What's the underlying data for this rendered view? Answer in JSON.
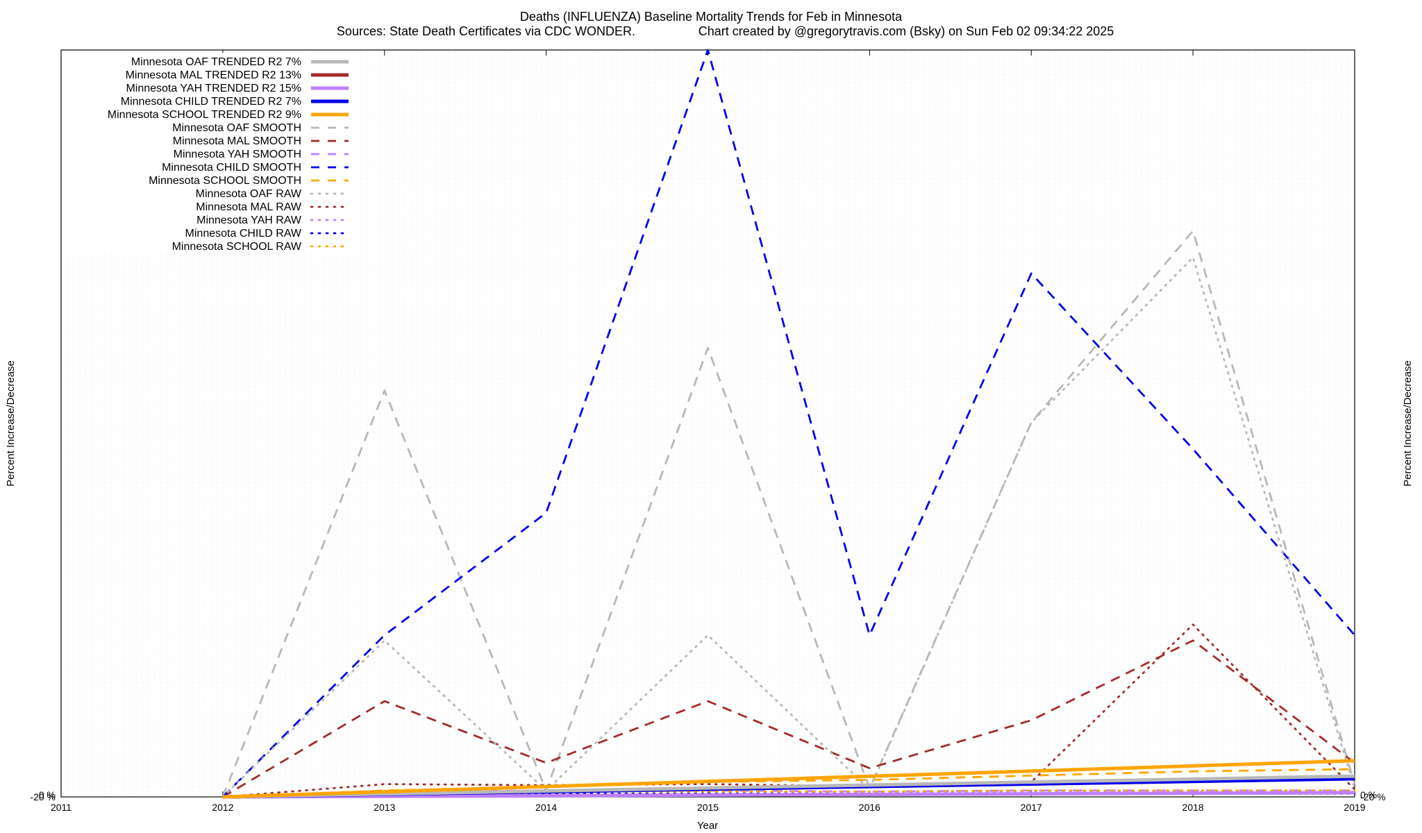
{
  "chart_data": {
    "type": "line",
    "title": "Deaths (INFLUENZA)  Baseline Mortality Trends for Feb in Minnesota",
    "subtitle_left": "Sources: State Death Certificates via CDC WONDER.",
    "subtitle_right": "Chart created by @gregorytravis.com (Bsky) on Sun Feb 02 09:34:22 2025",
    "xlabel": "Year",
    "ylabel": "Percent Increase/Decrease",
    "y2label": "Percent Increase/Decrease",
    "xlim": [
      2011,
      2019
    ],
    "ylim": [
      -20,
      7000
    ],
    "x_ticks": [
      2011,
      2012,
      2013,
      2014,
      2015,
      2016,
      2017,
      2018,
      2019
    ],
    "x_tick_labels": [
      "2011",
      "2012",
      "2013",
      "2014",
      "2015",
      "2016",
      "2017",
      "2018",
      "2019"
    ],
    "y_ticks": [
      -20,
      0
    ],
    "y_tick_labels": [
      "-20 %",
      "0 %"
    ],
    "grid": true,
    "legend_position": "top-left",
    "series": [
      {
        "name": "Minnesota OAF TRENDED R2   7%",
        "color": "#b8b8b8",
        "style": "solid",
        "x": [
          2012,
          2019
        ],
        "y": [
          -20,
          175
        ]
      },
      {
        "name": "Minnesota MAL TRENDED R2  13%",
        "color": "#a52a2a",
        "style": "solid",
        "x": [
          2012,
          2019
        ],
        "y": [
          -20,
          150
        ]
      },
      {
        "name": "Minnesota YAH TRENDED R2  15%",
        "color": "#bf7fff",
        "style": "solid",
        "x": [
          2012,
          2019
        ],
        "y": [
          -20,
          20
        ]
      },
      {
        "name": "Minnesota CHILD TRENDED R2   7%",
        "color": "#0000ee",
        "style": "solid",
        "x": [
          2012,
          2019
        ],
        "y": [
          -20,
          150
        ]
      },
      {
        "name": "Minnesota SCHOOL TRENDED R2   9%",
        "color": "#ffa500",
        "style": "solid",
        "x": [
          2012,
          2019
        ],
        "y": [
          -20,
          320
        ]
      },
      {
        "name": "Minnesota OAF SMOOTH",
        "color": "#b8b8b8",
        "style": "dash",
        "x": [
          2012,
          2013,
          2014,
          2015,
          2016,
          2017,
          2018,
          2019
        ],
        "y": [
          -20,
          3800,
          40,
          4200,
          60,
          3500,
          5300,
          100
        ]
      },
      {
        "name": "Minnesota MAL SMOOTH",
        "color": "#a52a2a",
        "style": "dash",
        "x": [
          2012,
          2013,
          2014,
          2015,
          2016,
          2017,
          2018,
          2019
        ],
        "y": [
          -20,
          880,
          300,
          880,
          250,
          700,
          1450,
          300
        ]
      },
      {
        "name": "Minnesota YAH SMOOTH",
        "color": "#bf7fff",
        "style": "dash",
        "x": [
          2012,
          2013,
          2014,
          2015,
          2016,
          2017,
          2018,
          2019
        ],
        "y": [
          -20,
          30,
          40,
          40,
          30,
          40,
          40,
          40
        ]
      },
      {
        "name": "Minnesota CHILD SMOOTH",
        "color": "#0000ee",
        "style": "dash",
        "x": [
          2012,
          2013,
          2014,
          2015,
          2016,
          2017,
          2018,
          2019
        ],
        "y": [
          -20,
          1500,
          2650,
          7000,
          1500,
          4900,
          3250,
          1500
        ]
      },
      {
        "name": "Minnesota SCHOOL SMOOTH",
        "color": "#ffa500",
        "style": "dash",
        "x": [
          2012,
          2013,
          2014,
          2015,
          2016,
          2017,
          2018,
          2019
        ],
        "y": [
          -20,
          40,
          80,
          120,
          140,
          180,
          220,
          240
        ]
      },
      {
        "name": "Minnesota OAF RAW",
        "color": "#b8b8b8",
        "style": "dot",
        "x": [
          2012,
          2013,
          2014,
          2015,
          2016,
          2017,
          2018,
          2019
        ],
        "y": [
          -20,
          1450,
          40,
          1500,
          50,
          3500,
          5050,
          60
        ]
      },
      {
        "name": "Minnesota MAL RAW",
        "color": "#a52a2a",
        "style": "dot",
        "x": [
          2012,
          2013,
          2014,
          2015,
          2016,
          2017,
          2018,
          2019
        ],
        "y": [
          -20,
          100,
          90,
          100,
          80,
          120,
          1600,
          50
        ]
      },
      {
        "name": "Minnesota YAH RAW",
        "color": "#bf7fff",
        "style": "dot",
        "x": [
          2012,
          2013,
          2014,
          2015,
          2016,
          2017,
          2018,
          2019
        ],
        "y": [
          -20,
          20,
          30,
          30,
          20,
          30,
          30,
          30
        ]
      },
      {
        "name": "Minnesota CHILD RAW",
        "color": "#0000ee",
        "style": "dot",
        "x": [
          2012,
          2013,
          2014,
          2015,
          2016,
          2017,
          2018,
          2019
        ],
        "y": [
          -20,
          10,
          10,
          10,
          10,
          10,
          10,
          10
        ]
      },
      {
        "name": "Minnesota SCHOOL RAW",
        "color": "#ffa500",
        "style": "dot",
        "x": [
          2012,
          2013,
          2014,
          2015,
          2016,
          2017,
          2018,
          2019
        ],
        "y": [
          -20,
          20,
          30,
          30,
          30,
          40,
          40,
          40
        ]
      }
    ]
  }
}
